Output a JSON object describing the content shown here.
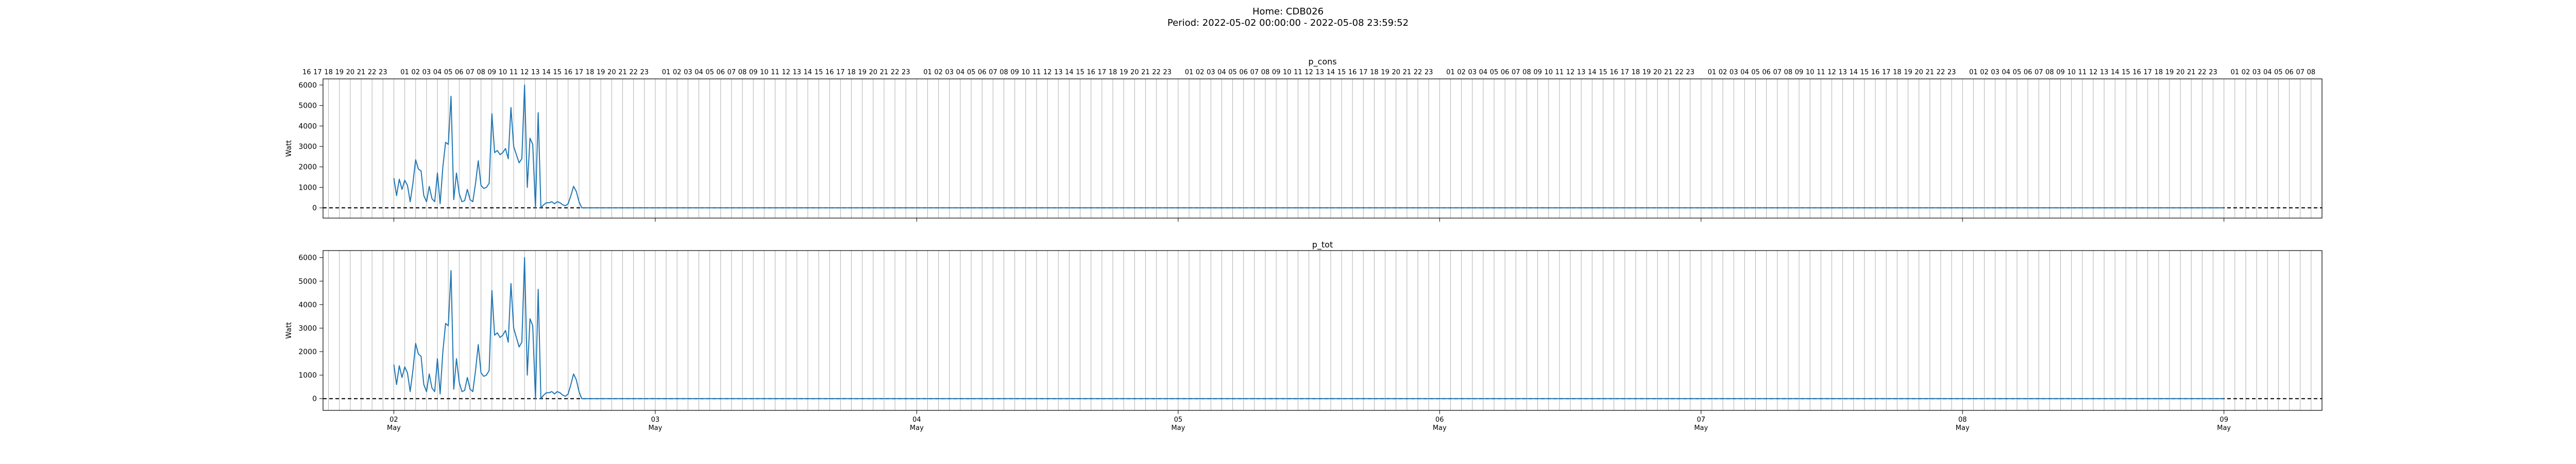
{
  "header": {
    "home_label": "Home: CDB026",
    "period_label": "Period: 2022-05-02 00:00:00 - 2022-05-08 23:59:52"
  },
  "colors": {
    "series": "#1f77b4",
    "baseline": "#000000",
    "grid": "#b0b0b0",
    "frame": "#000000"
  },
  "chart_data": [
    {
      "type": "line",
      "title": "p_cons",
      "ylabel": "Watt",
      "ylim": [
        -500,
        6300
      ],
      "yticks": [
        0,
        1000,
        2000,
        3000,
        4000,
        5000,
        6000
      ],
      "xlim": [
        "2022-05-01 17:30",
        "2022-05-09 09:00"
      ],
      "hour_tick_range": [
        "2022-05-01 16:00",
        "2022-05-09 08:00"
      ],
      "grid": "vertical hourly lines",
      "baseline": {
        "y": 0,
        "style": "dashed"
      },
      "start": "2022-05-02 00:00",
      "step_minutes": 15,
      "values": [
        1450,
        600,
        1400,
        900,
        1350,
        1100,
        300,
        1200,
        2350,
        1900,
        1800,
        600,
        300,
        1050,
        450,
        300,
        1700,
        200,
        2000,
        3200,
        3100,
        5450,
        400,
        1700,
        700,
        300,
        350,
        900,
        400,
        300,
        1200,
        2300,
        1100,
        950,
        1000,
        1200,
        4600,
        2700,
        2800,
        2600,
        2700,
        2900,
        2400,
        4900,
        3000,
        2600,
        2200,
        2400,
        6000,
        1000,
        3400,
        3100,
        0,
        4650,
        0,
        150,
        250,
        250,
        300,
        200,
        300,
        250,
        150,
        100,
        200,
        600,
        1050,
        800,
        300,
        0,
        0
      ],
      "rest_value": 0,
      "rest_end": "2022-05-08 23:59",
      "x_major_labels": [
        {
          "day": "02",
          "month": "May"
        },
        {
          "day": "03",
          "month": "May"
        },
        {
          "day": "04",
          "month": "May"
        },
        {
          "day": "05",
          "month": "May"
        },
        {
          "day": "06",
          "month": "May"
        },
        {
          "day": "07",
          "month": "May"
        },
        {
          "day": "08",
          "month": "May"
        },
        {
          "day": "09",
          "month": "May"
        }
      ]
    },
    {
      "type": "line",
      "title": "p_tot",
      "ylabel": "Watt",
      "ylim": [
        -500,
        6300
      ],
      "yticks": [
        0,
        1000,
        2000,
        3000,
        4000,
        5000,
        6000
      ],
      "xlim": [
        "2022-05-01 17:30",
        "2022-05-09 09:00"
      ],
      "grid": "vertical hourly lines",
      "baseline": {
        "y": 0,
        "style": "dashed"
      },
      "start": "2022-05-02 00:00",
      "step_minutes": 15,
      "values": [
        1450,
        600,
        1400,
        900,
        1350,
        1100,
        300,
        1200,
        2350,
        1900,
        1800,
        600,
        300,
        1050,
        450,
        300,
        1700,
        200,
        2000,
        3200,
        3100,
        5450,
        400,
        1700,
        700,
        300,
        350,
        900,
        400,
        300,
        1200,
        2300,
        1100,
        950,
        1000,
        1200,
        4600,
        2700,
        2800,
        2600,
        2700,
        2900,
        2400,
        4900,
        3000,
        2600,
        2200,
        2400,
        6000,
        1000,
        3400,
        3100,
        0,
        4650,
        0,
        150,
        250,
        250,
        300,
        200,
        300,
        250,
        150,
        100,
        200,
        600,
        1050,
        800,
        300,
        0,
        0
      ],
      "rest_value": 0,
      "rest_end": "2022-05-08 23:59",
      "x_major_labels": [
        {
          "day": "02",
          "month": "May"
        },
        {
          "day": "03",
          "month": "May"
        },
        {
          "day": "04",
          "month": "May"
        },
        {
          "day": "05",
          "month": "May"
        },
        {
          "day": "06",
          "month": "May"
        },
        {
          "day": "07",
          "month": "May"
        },
        {
          "day": "08",
          "month": "May"
        },
        {
          "day": "09",
          "month": "May"
        }
      ]
    }
  ]
}
